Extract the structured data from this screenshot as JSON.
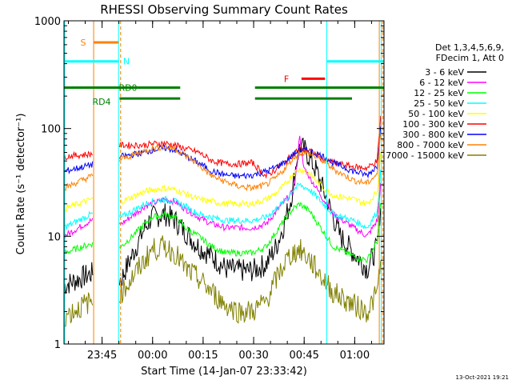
{
  "chart_data": {
    "type": "line",
    "title": "RHESSI Observing Summary Count Rates",
    "xlabel": "Start Time (14-Jan-07 23:33:42)",
    "ylabel": "Count Rate (s⁻¹ detector⁻¹)",
    "y_scale": "log",
    "ylim": [
      1,
      1000
    ],
    "yticks": [
      1,
      10,
      100,
      1000
    ],
    "xlim_minutes_after_start": [
      0,
      95
    ],
    "x_ticks": [
      {
        "label": "23:45",
        "minutes": 11.3
      },
      {
        "label": "00:00",
        "minutes": 26.3
      },
      {
        "label": "00:15",
        "minutes": 41.3
      },
      {
        "label": "00:30",
        "minutes": 56.3
      },
      {
        "label": "00:45",
        "minutes": 71.3
      },
      {
        "label": "01:00",
        "minutes": 86.3
      }
    ],
    "legend_header": [
      "Det 1,3,4,5,6,9,",
      "FDecim 1, Att 0"
    ],
    "legend_position": "right",
    "series": [
      {
        "name": "3 - 6 keV",
        "color": "#000000",
        "points": [
          [
            0,
            3.5
          ],
          [
            8,
            4.5
          ],
          [
            17,
            4
          ],
          [
            24,
            12
          ],
          [
            26,
            15
          ],
          [
            30,
            16
          ],
          [
            33,
            14
          ],
          [
            36,
            11
          ],
          [
            40,
            8
          ],
          [
            44,
            6.5
          ],
          [
            48,
            5
          ],
          [
            52,
            4.8
          ],
          [
            56,
            4.8
          ],
          [
            60,
            5.5
          ],
          [
            63,
            8
          ],
          [
            65,
            12
          ],
          [
            67,
            20
          ],
          [
            68,
            28
          ],
          [
            69,
            50
          ],
          [
            70,
            70
          ],
          [
            72,
            60
          ],
          [
            75,
            40
          ],
          [
            79,
            18
          ],
          [
            82,
            10
          ],
          [
            86,
            7
          ],
          [
            90,
            5
          ],
          [
            93,
            8
          ],
          [
            94,
            20
          ]
        ]
      },
      {
        "name": "6 - 12 keV",
        "color": "#ff00ff",
        "points": [
          [
            0,
            10
          ],
          [
            8,
            14
          ],
          [
            17,
            13
          ],
          [
            24,
            19
          ],
          [
            26,
            20
          ],
          [
            30,
            22
          ],
          [
            33,
            21
          ],
          [
            36,
            18
          ],
          [
            40,
            15
          ],
          [
            44,
            13
          ],
          [
            48,
            12
          ],
          [
            52,
            12
          ],
          [
            56,
            12
          ],
          [
            60,
            13
          ],
          [
            63,
            17
          ],
          [
            66,
            22
          ],
          [
            68,
            26
          ],
          [
            69,
            40
          ],
          [
            70,
            90
          ],
          [
            71,
            45
          ],
          [
            73,
            35
          ],
          [
            77,
            22
          ],
          [
            80,
            16
          ],
          [
            86,
            12
          ],
          [
            90,
            10
          ],
          [
            93,
            14
          ],
          [
            94,
            30
          ]
        ]
      },
      {
        "name": "12 - 25 keV",
        "color": "#00ff00",
        "points": [
          [
            0,
            7
          ],
          [
            8,
            8.5
          ],
          [
            17,
            8
          ],
          [
            24,
            13
          ],
          [
            26,
            15
          ],
          [
            30,
            16
          ],
          [
            33,
            15
          ],
          [
            36,
            12
          ],
          [
            40,
            10
          ],
          [
            44,
            8
          ],
          [
            48,
            7
          ],
          [
            52,
            7
          ],
          [
            56,
            7
          ],
          [
            60,
            8
          ],
          [
            63,
            11
          ],
          [
            66,
            15
          ],
          [
            68,
            18
          ],
          [
            70,
            20
          ],
          [
            73,
            17
          ],
          [
            77,
            11
          ],
          [
            80,
            8
          ],
          [
            86,
            6.5
          ],
          [
            90,
            6
          ],
          [
            93,
            9
          ],
          [
            94,
            20
          ]
        ]
      },
      {
        "name": "25 - 50 keV",
        "color": "#00ffff",
        "points": [
          [
            0,
            12
          ],
          [
            8,
            16
          ],
          [
            17,
            15
          ],
          [
            24,
            20
          ],
          [
            26,
            21
          ],
          [
            30,
            22
          ],
          [
            33,
            21
          ],
          [
            36,
            19
          ],
          [
            40,
            16
          ],
          [
            44,
            15
          ],
          [
            48,
            14
          ],
          [
            52,
            14
          ],
          [
            56,
            14
          ],
          [
            60,
            15
          ],
          [
            63,
            18
          ],
          [
            66,
            22
          ],
          [
            68,
            27
          ],
          [
            70,
            30
          ],
          [
            73,
            27
          ],
          [
            77,
            20
          ],
          [
            80,
            16
          ],
          [
            86,
            14
          ],
          [
            90,
            12
          ],
          [
            93,
            17
          ],
          [
            94,
            40
          ]
        ]
      },
      {
        "name": "50 - 100 keV",
        "color": "#ffff00",
        "points": [
          [
            0,
            18
          ],
          [
            8,
            22
          ],
          [
            17,
            21
          ],
          [
            24,
            26
          ],
          [
            26,
            27
          ],
          [
            30,
            28
          ],
          [
            33,
            27
          ],
          [
            36,
            25
          ],
          [
            40,
            22
          ],
          [
            44,
            21
          ],
          [
            48,
            20
          ],
          [
            52,
            20
          ],
          [
            56,
            20
          ],
          [
            60,
            22
          ],
          [
            63,
            25
          ],
          [
            66,
            31
          ],
          [
            68,
            38
          ],
          [
            70,
            42
          ],
          [
            73,
            38
          ],
          [
            77,
            28
          ],
          [
            80,
            24
          ],
          [
            86,
            22
          ],
          [
            90,
            20
          ],
          [
            93,
            26
          ],
          [
            94,
            60
          ]
        ]
      },
      {
        "name": "100 - 300 keV",
        "color": "#ff0000",
        "points": [
          [
            0,
            55
          ],
          [
            8,
            58
          ],
          [
            17,
            70
          ],
          [
            24,
            70
          ],
          [
            26,
            72
          ],
          [
            30,
            73
          ],
          [
            33,
            70
          ],
          [
            36,
            65
          ],
          [
            40,
            60
          ],
          [
            44,
            50
          ],
          [
            48,
            47
          ],
          [
            52,
            47
          ],
          [
            56,
            48
          ],
          [
            60,
            36
          ],
          [
            63,
            42
          ],
          [
            66,
            50
          ],
          [
            68,
            58
          ],
          [
            70,
            65
          ],
          [
            73,
            62
          ],
          [
            77,
            52
          ],
          [
            80,
            48
          ],
          [
            86,
            44
          ],
          [
            90,
            43
          ],
          [
            93,
            50
          ],
          [
            94,
            130
          ]
        ]
      },
      {
        "name": "300 - 800 keV",
        "color": "#0000ff",
        "points": [
          [
            0,
            40
          ],
          [
            8,
            46
          ],
          [
            17,
            55
          ],
          [
            24,
            60
          ],
          [
            26,
            63
          ],
          [
            30,
            66
          ],
          [
            33,
            63
          ],
          [
            36,
            56
          ],
          [
            40,
            48
          ],
          [
            44,
            40
          ],
          [
            48,
            37
          ],
          [
            52,
            36
          ],
          [
            56,
            37
          ],
          [
            60,
            40
          ],
          [
            63,
            44
          ],
          [
            66,
            50
          ],
          [
            68,
            57
          ],
          [
            70,
            63
          ],
          [
            73,
            62
          ],
          [
            77,
            55
          ],
          [
            80,
            48
          ],
          [
            86,
            40
          ],
          [
            90,
            37
          ],
          [
            93,
            45
          ],
          [
            94,
            110
          ]
        ]
      },
      {
        "name": "800 - 7000 keV",
        "color": "#ff8000",
        "points": [
          [
            0,
            28
          ],
          [
            8,
            36
          ],
          [
            17,
            52
          ],
          [
            24,
            62
          ],
          [
            26,
            65
          ],
          [
            30,
            68
          ],
          [
            33,
            65
          ],
          [
            36,
            56
          ],
          [
            40,
            46
          ],
          [
            44,
            36
          ],
          [
            48,
            32
          ],
          [
            52,
            29
          ],
          [
            56,
            28
          ],
          [
            60,
            30
          ],
          [
            63,
            35
          ],
          [
            66,
            44
          ],
          [
            68,
            53
          ],
          [
            70,
            60
          ],
          [
            73,
            58
          ],
          [
            77,
            50
          ],
          [
            80,
            42
          ],
          [
            86,
            33
          ],
          [
            90,
            31
          ],
          [
            93,
            38
          ],
          [
            94,
            90
          ]
        ]
      },
      {
        "name": "7000 - 15000 keV",
        "color": "#808000",
        "points": [
          [
            0,
            1.8
          ],
          [
            8,
            2.5
          ],
          [
            17,
            3
          ],
          [
            24,
            6
          ],
          [
            26,
            7.5
          ],
          [
            30,
            8
          ],
          [
            33,
            7
          ],
          [
            36,
            5
          ],
          [
            40,
            4
          ],
          [
            44,
            3
          ],
          [
            48,
            2.3
          ],
          [
            52,
            2
          ],
          [
            56,
            2
          ],
          [
            60,
            2.5
          ],
          [
            63,
            4
          ],
          [
            66,
            6
          ],
          [
            68,
            7
          ],
          [
            70,
            7.5
          ],
          [
            73,
            6
          ],
          [
            77,
            4
          ],
          [
            80,
            3
          ],
          [
            86,
            2.3
          ],
          [
            90,
            2
          ],
          [
            93,
            3
          ],
          [
            94,
            6
          ]
        ]
      }
    ],
    "gaps_minutes": [
      [
        8.5,
        16.5
      ]
    ],
    "vertical_markers": [
      {
        "minutes": 0.2,
        "color": "#00ffff",
        "dash": false
      },
      {
        "minutes": 8.8,
        "color": "#ff8000",
        "dash": false
      },
      {
        "minutes": 16.2,
        "color": "#00ffff",
        "dash": false
      },
      {
        "minutes": 16.8,
        "color": "#ff8000",
        "dash": true
      },
      {
        "minutes": 78.0,
        "color": "#00ffff",
        "dash": false
      },
      {
        "minutes": 93.6,
        "color": "#ff8000",
        "dash": false
      },
      {
        "minutes": 94.2,
        "color": "#00ffff",
        "dash": false
      },
      {
        "minutes": 94.7,
        "color": "#ff8000",
        "dash": true
      }
    ],
    "flag_bars": [
      {
        "label": "S",
        "color": "#ff8000",
        "y": 630,
        "segments": [
          [
            8.8,
            16.2
          ]
        ]
      },
      {
        "label": "N",
        "color": "#00ffff",
        "y": 420,
        "segments": [
          [
            0,
            16.2
          ],
          [
            78.0,
            95
          ]
        ]
      },
      {
        "label": "RD0",
        "color": "#008000",
        "y": 240,
        "segments": [
          [
            0,
            34.5
          ],
          [
            56.7,
            95
          ]
        ]
      },
      {
        "label": "RD4",
        "color": "#008000",
        "y": 190,
        "segments": [
          [
            16.5,
            34.5
          ],
          [
            56.7,
            85.5
          ]
        ]
      },
      {
        "label": "F",
        "color": "#ff0000",
        "y": 290,
        "segments": [
          [
            70.5,
            77.5
          ]
        ]
      }
    ]
  },
  "timestamp": "13-Oct-2021 19:21"
}
